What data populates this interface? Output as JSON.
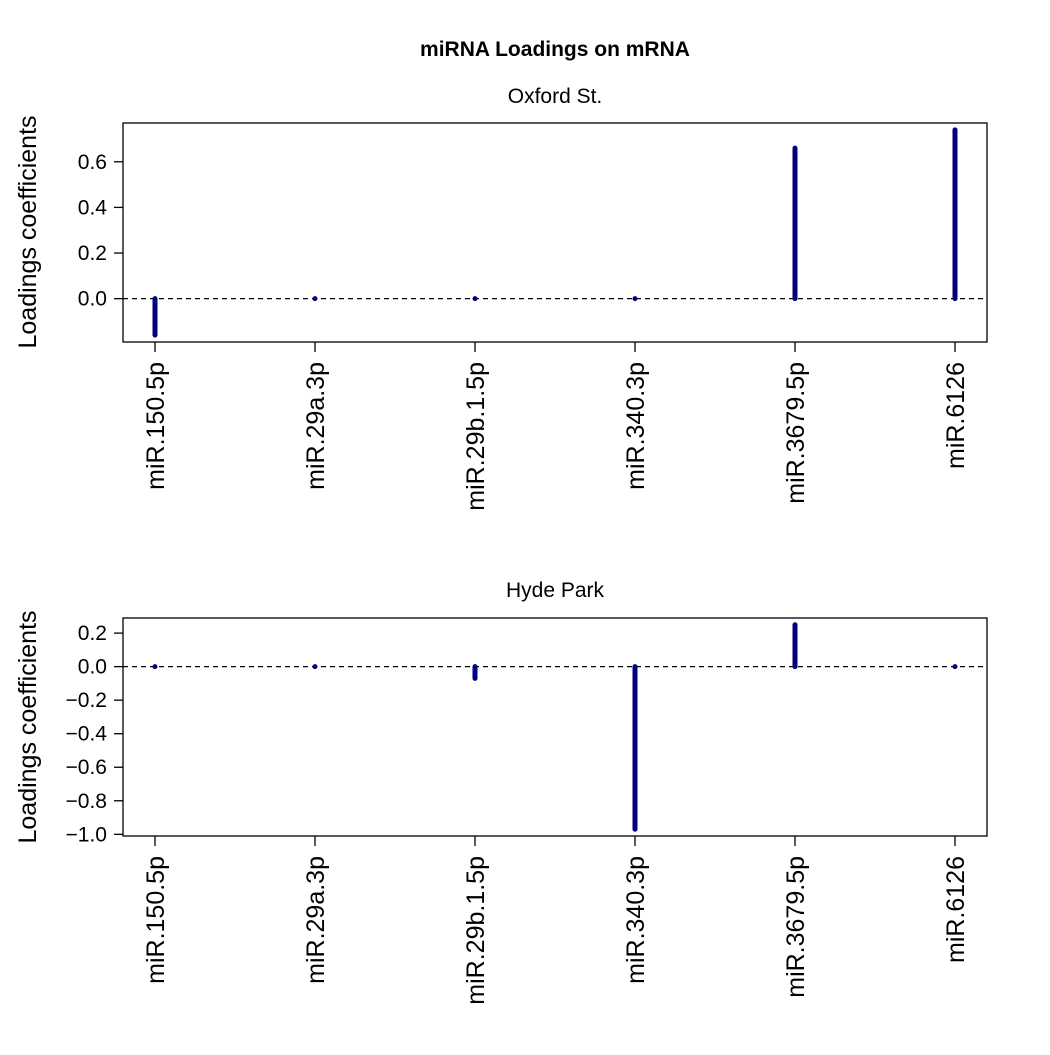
{
  "figure": {
    "title": "miRNA Loadings on mRNA"
  },
  "colors": {
    "stem": "#000080",
    "axis": "#000000",
    "reference_line": "#000000",
    "background": "#ffffff"
  },
  "chart_data": [
    {
      "type": "bar",
      "style": "vertical stem (lollipop without head) with dashed zero line",
      "title": "Oxford St.",
      "xlabel": "",
      "ylabel": "Loadings coefficients",
      "categories": [
        "miR.150.5p",
        "miR.29a.3p",
        "miR.29b.1.5p",
        "miR.340.3p",
        "miR.3679.5p",
        "miR.6126"
      ],
      "values": [
        -0.16,
        0.0,
        0.0,
        0.0,
        0.66,
        0.74
      ],
      "ylim": [
        -0.19,
        0.77
      ],
      "yticks": [
        0.0,
        0.2,
        0.4,
        0.6
      ],
      "ytick_labels": [
        "0.0",
        "0.2",
        "0.4",
        "0.6"
      ],
      "reference_line": 0.0,
      "grid": false,
      "legend": "none"
    },
    {
      "type": "bar",
      "style": "vertical stem (lollipop without head) with dashed zero line",
      "title": "Hyde Park",
      "xlabel": "",
      "ylabel": "Loadings coefficients",
      "categories": [
        "miR.150.5p",
        "miR.29a.3p",
        "miR.29b.1.5p",
        "miR.340.3p",
        "miR.3679.5p",
        "miR.6126"
      ],
      "values": [
        0.0,
        0.0,
        -0.07,
        -0.97,
        0.25,
        0.0
      ],
      "ylim": [
        -1.01,
        0.29
      ],
      "yticks": [
        0.2,
        0.0,
        -0.2,
        -0.4,
        -0.6,
        -0.8,
        -1.0
      ],
      "ytick_labels": [
        "0.2",
        "0.0",
        "−0.2",
        "−0.4",
        "−0.6",
        "−0.8",
        "−1.0"
      ],
      "reference_line": 0.0,
      "grid": false,
      "legend": "none"
    }
  ]
}
